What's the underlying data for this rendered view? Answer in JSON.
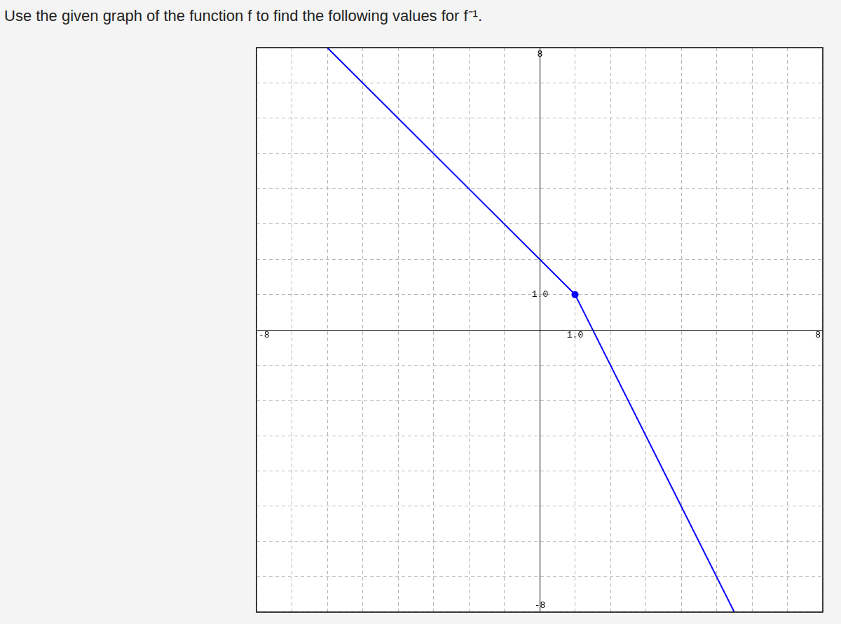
{
  "chart_data": {
    "type": "scatter",
    "title": "Use the given graph of the function f to find the following values for f⁻¹.",
    "xlim": [
      -8,
      8
    ],
    "ylim": [
      -8,
      8
    ],
    "xticks": [
      -8,
      {
        "value": 1,
        "label": "1.0"
      },
      8
    ],
    "yticks": [
      -8,
      {
        "value": 1,
        "label": "1.0"
      },
      8
    ],
    "grid": true,
    "series": [
      {
        "type": "line",
        "color": "#0000ff",
        "marker": "none",
        "x": [
          -6,
          1,
          5.5
        ],
        "values": [
          8,
          1,
          -8
        ]
      },
      {
        "type": "scatter",
        "color": "#0000ff",
        "marker": "circle",
        "x": [
          1
        ],
        "values": [
          1
        ]
      }
    ]
  }
}
